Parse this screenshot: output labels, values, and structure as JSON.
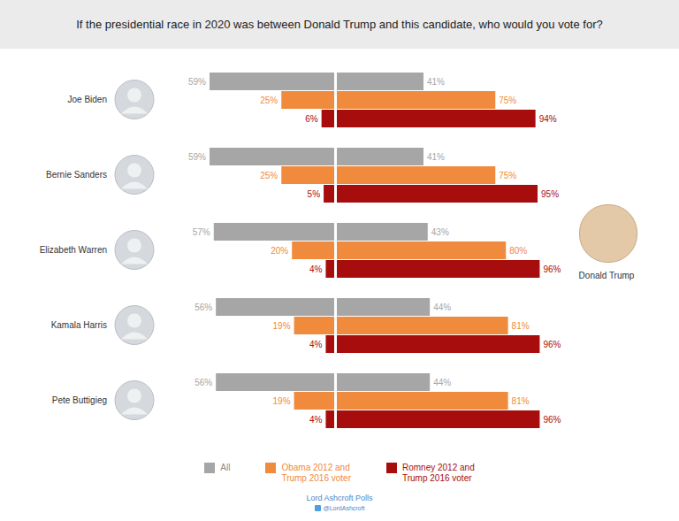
{
  "chart_data": {
    "type": "bar",
    "orientation": "horizontal",
    "title": "If the presidential race in 2020 was between Donald Trump and this candidate, who would you vote for?",
    "categories": [
      "Joe Biden",
      "Bernie Sanders",
      "Elizabeth Warren",
      "Kamala Harris",
      "Pete Buttigieg"
    ],
    "opponent": "Donald Trump",
    "xlim": [
      0,
      100
    ],
    "tick_labels": false,
    "data_labels": true,
    "legend": "bottom",
    "series": [
      {
        "name": "All",
        "color": "#a6a6a6",
        "values": [
          59,
          59,
          57,
          56,
          56
        ],
        "value_labels": [
          "59%",
          "59%",
          "57%",
          "56%",
          "56%"
        ],
        "opponent_values": [
          41,
          41,
          43,
          44,
          44
        ],
        "opponent_value_labels": [
          "41%",
          "41%",
          "43%",
          "44%",
          "44%"
        ]
      },
      {
        "name": "Obama 2012 and Trump 2016 voter",
        "color": "#f08a3c",
        "values": [
          25,
          25,
          20,
          19,
          19
        ],
        "value_labels": [
          "25%",
          "25%",
          "20%",
          "19%",
          "19%"
        ],
        "opponent_values": [
          75,
          75,
          80,
          81,
          81
        ],
        "opponent_value_labels": [
          "75%",
          "75%",
          "80%",
          "81%",
          "81%"
        ]
      },
      {
        "name": "Romney 2012 and Trump 2016 voter",
        "color": "#a80d0d",
        "values": [
          6,
          5,
          4,
          4,
          4
        ],
        "value_labels": [
          "6%",
          "5%",
          "4%",
          "4%",
          "4%"
        ],
        "opponent_values": [
          94,
          95,
          96,
          96,
          96
        ],
        "opponent_value_labels": [
          "94%",
          "95%",
          "96%",
          "96%",
          "96%"
        ]
      }
    ],
    "source": "Lord Ashcroft Polls",
    "source_handle": "@LordAshcroft"
  }
}
